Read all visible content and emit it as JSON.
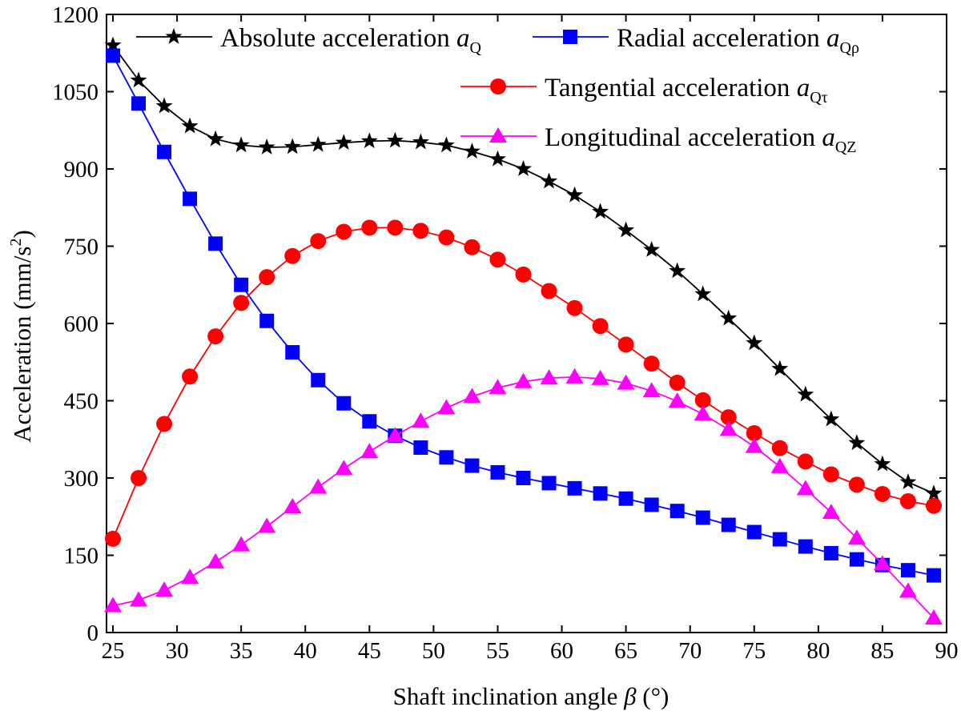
{
  "chart_data": {
    "type": "line",
    "title": "",
    "xlabel": "Shaft inclination angle",
    "xlabel_symbol": "β",
    "xlabel_unit": "(°)",
    "ylabel": "Acceleration (mm/s",
    "ylabel_sup": "2",
    "ylabel_close": ")",
    "xlim": [
      24.5,
      90
    ],
    "ylim": [
      0,
      1200
    ],
    "x_ticks": [
      25,
      30,
      35,
      40,
      45,
      50,
      55,
      60,
      65,
      70,
      75,
      80,
      85,
      90
    ],
    "y_ticks": [
      0,
      150,
      300,
      450,
      600,
      750,
      900,
      1050,
      1200
    ],
    "grid": false,
    "legend_position": "top",
    "x": [
      25,
      27,
      29,
      31,
      33,
      35,
      37,
      39,
      41,
      43,
      45,
      47,
      49,
      51,
      53,
      55,
      57,
      59,
      61,
      63,
      65,
      67,
      69,
      71,
      73,
      75,
      77,
      79,
      81,
      83,
      85,
      87,
      89
    ],
    "series": [
      {
        "name": "Absolute acceleration ",
        "symbol": "a",
        "subscript": "Q",
        "color": "#000000",
        "marker": "star",
        "values": [
          1140,
          1072,
          1022,
          983,
          958,
          946,
          942,
          943,
          947,
          951,
          954,
          955,
          952,
          946,
          934,
          919,
          900,
          876,
          849,
          817,
          781,
          743,
          702,
          657,
          610,
          562,
          512,
          462,
          414,
          368,
          327,
          292,
          270
        ]
      },
      {
        "name": "Radial acceleration ",
        "symbol": "a",
        "subscript": "Qρ",
        "color": "#0000ff",
        "marker": "square",
        "values": [
          1120,
          1027,
          933,
          842,
          755,
          675,
          605,
          544,
          490,
          445,
          410,
          382,
          359,
          340,
          324,
          311,
          300,
          290,
          280,
          270,
          260,
          248,
          236,
          223,
          209,
          195,
          181,
          167,
          154,
          142,
          131,
          121,
          111
        ]
      },
      {
        "name": "Tangential acceleration ",
        "symbol": "a",
        "subscript": "Qτ",
        "color": "#ff0000",
        "marker": "circle",
        "values": [
          182,
          300,
          405,
          497,
          575,
          640,
          690,
          731,
          760,
          778,
          786,
          786,
          780,
          767,
          748,
          724,
          695,
          663,
          630,
          595,
          559,
          522,
          485,
          451,
          418,
          387,
          358,
          332,
          307,
          287,
          269,
          255,
          246
        ]
      },
      {
        "name": "Longitudinal acceleration ",
        "symbol": "a",
        "subscript": "QZ",
        "color": "#ff00ff",
        "marker": "triangle",
        "values": [
          52,
          63,
          82,
          107,
          137,
          170,
          206,
          244,
          282,
          318,
          351,
          382,
          410,
          436,
          458,
          475,
          487,
          494,
          496,
          493,
          484,
          469,
          449,
          424,
          394,
          361,
          322,
          279,
          233,
          183,
          133,
          80,
          28
        ]
      }
    ]
  }
}
